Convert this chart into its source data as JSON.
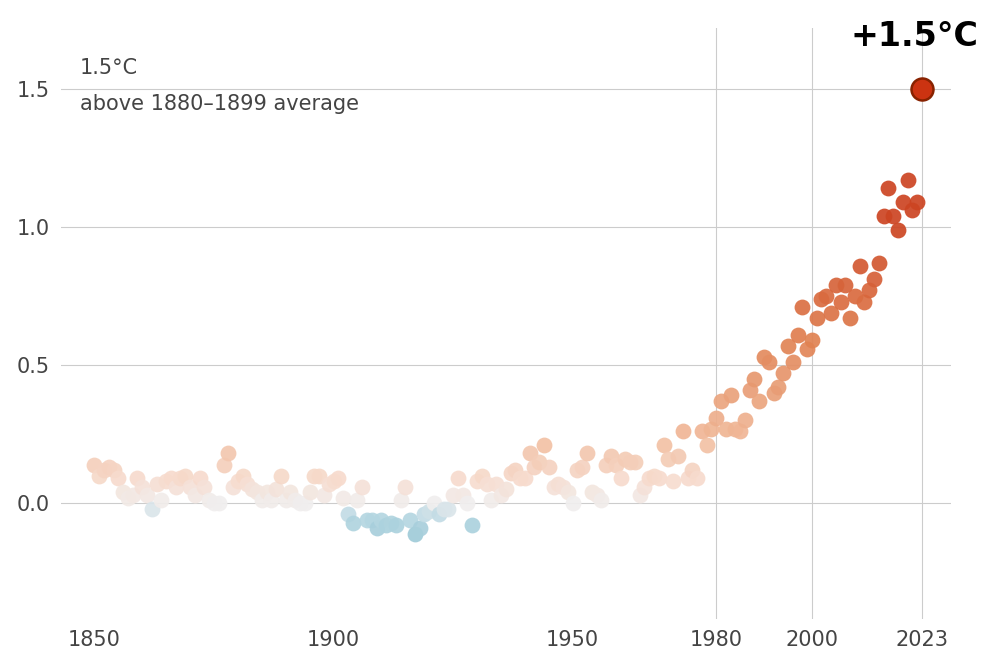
{
  "title_annotation": "+1.5°C",
  "ylabel_line1": "1.5°C",
  "ylabel_line2": "above 1880–1899 average",
  "background_color": "#ffffff",
  "xlim": [
    1843,
    2029
  ],
  "ylim": [
    -0.42,
    1.72
  ],
  "yticks": [
    0.0,
    0.5,
    1.0,
    1.5
  ],
  "xticks": [
    1850,
    1900,
    1950,
    1980,
    2000,
    2023
  ],
  "vgrid_years": [
    1980,
    2000,
    2023
  ],
  "data": [
    [
      1850,
      0.14
    ],
    [
      1851,
      0.1
    ],
    [
      1852,
      0.12
    ],
    [
      1853,
      0.13
    ],
    [
      1854,
      0.12
    ],
    [
      1855,
      0.09
    ],
    [
      1856,
      0.04
    ],
    [
      1857,
      0.02
    ],
    [
      1858,
      0.03
    ],
    [
      1859,
      0.09
    ],
    [
      1860,
      0.06
    ],
    [
      1861,
      0.03
    ],
    [
      1862,
      -0.02
    ],
    [
      1863,
      0.07
    ],
    [
      1864,
      0.01
    ],
    [
      1865,
      0.08
    ],
    [
      1866,
      0.09
    ],
    [
      1867,
      0.06
    ],
    [
      1868,
      0.09
    ],
    [
      1869,
      0.1
    ],
    [
      1870,
      0.06
    ],
    [
      1871,
      0.03
    ],
    [
      1872,
      0.09
    ],
    [
      1873,
      0.06
    ],
    [
      1874,
      0.01
    ],
    [
      1875,
      0.0
    ],
    [
      1876,
      0.0
    ],
    [
      1877,
      0.14
    ],
    [
      1878,
      0.18
    ],
    [
      1879,
      0.06
    ],
    [
      1880,
      0.08
    ],
    [
      1881,
      0.1
    ],
    [
      1882,
      0.07
    ],
    [
      1883,
      0.05
    ],
    [
      1884,
      0.04
    ],
    [
      1885,
      0.01
    ],
    [
      1886,
      0.04
    ],
    [
      1887,
      0.01
    ],
    [
      1888,
      0.05
    ],
    [
      1889,
      0.1
    ],
    [
      1890,
      0.01
    ],
    [
      1891,
      0.04
    ],
    [
      1892,
      0.01
    ],
    [
      1893,
      0.0
    ],
    [
      1894,
      0.0
    ],
    [
      1895,
      0.04
    ],
    [
      1896,
      0.1
    ],
    [
      1897,
      0.1
    ],
    [
      1898,
      0.03
    ],
    [
      1899,
      0.07
    ],
    [
      1900,
      0.08
    ],
    [
      1901,
      0.09
    ],
    [
      1902,
      0.02
    ],
    [
      1903,
      -0.04
    ],
    [
      1904,
      -0.07
    ],
    [
      1905,
      0.01
    ],
    [
      1906,
      0.06
    ],
    [
      1907,
      -0.06
    ],
    [
      1908,
      -0.06
    ],
    [
      1909,
      -0.09
    ],
    [
      1910,
      -0.06
    ],
    [
      1911,
      -0.08
    ],
    [
      1912,
      -0.07
    ],
    [
      1913,
      -0.08
    ],
    [
      1914,
      0.01
    ],
    [
      1915,
      0.06
    ],
    [
      1916,
      -0.06
    ],
    [
      1917,
      -0.11
    ],
    [
      1918,
      -0.09
    ],
    [
      1919,
      -0.04
    ],
    [
      1920,
      -0.03
    ],
    [
      1921,
      0.0
    ],
    [
      1922,
      -0.04
    ],
    [
      1923,
      -0.02
    ],
    [
      1924,
      -0.02
    ],
    [
      1925,
      0.03
    ],
    [
      1926,
      0.09
    ],
    [
      1927,
      0.03
    ],
    [
      1928,
      0.0
    ],
    [
      1929,
      -0.08
    ],
    [
      1930,
      0.08
    ],
    [
      1931,
      0.1
    ],
    [
      1932,
      0.07
    ],
    [
      1933,
      0.01
    ],
    [
      1934,
      0.07
    ],
    [
      1935,
      0.03
    ],
    [
      1936,
      0.05
    ],
    [
      1937,
      0.11
    ],
    [
      1938,
      0.12
    ],
    [
      1939,
      0.09
    ],
    [
      1940,
      0.09
    ],
    [
      1941,
      0.18
    ],
    [
      1942,
      0.13
    ],
    [
      1943,
      0.15
    ],
    [
      1944,
      0.21
    ],
    [
      1945,
      0.13
    ],
    [
      1946,
      0.06
    ],
    [
      1947,
      0.07
    ],
    [
      1948,
      0.06
    ],
    [
      1949,
      0.04
    ],
    [
      1950,
      0.0
    ],
    [
      1951,
      0.12
    ],
    [
      1952,
      0.13
    ],
    [
      1953,
      0.18
    ],
    [
      1954,
      0.04
    ],
    [
      1955,
      0.03
    ],
    [
      1956,
      0.01
    ],
    [
      1957,
      0.14
    ],
    [
      1958,
      0.17
    ],
    [
      1959,
      0.14
    ],
    [
      1960,
      0.09
    ],
    [
      1961,
      0.16
    ],
    [
      1962,
      0.15
    ],
    [
      1963,
      0.15
    ],
    [
      1964,
      0.03
    ],
    [
      1965,
      0.06
    ],
    [
      1966,
      0.09
    ],
    [
      1967,
      0.1
    ],
    [
      1968,
      0.09
    ],
    [
      1969,
      0.21
    ],
    [
      1970,
      0.16
    ],
    [
      1971,
      0.08
    ],
    [
      1972,
      0.17
    ],
    [
      1973,
      0.26
    ],
    [
      1974,
      0.09
    ],
    [
      1975,
      0.12
    ],
    [
      1976,
      0.09
    ],
    [
      1977,
      0.26
    ],
    [
      1978,
      0.21
    ],
    [
      1979,
      0.27
    ],
    [
      1980,
      0.31
    ],
    [
      1981,
      0.37
    ],
    [
      1982,
      0.27
    ],
    [
      1983,
      0.39
    ],
    [
      1984,
      0.27
    ],
    [
      1985,
      0.26
    ],
    [
      1986,
      0.3
    ],
    [
      1987,
      0.41
    ],
    [
      1988,
      0.45
    ],
    [
      1989,
      0.37
    ],
    [
      1990,
      0.53
    ],
    [
      1991,
      0.51
    ],
    [
      1992,
      0.4
    ],
    [
      1993,
      0.42
    ],
    [
      1994,
      0.47
    ],
    [
      1995,
      0.57
    ],
    [
      1996,
      0.51
    ],
    [
      1997,
      0.61
    ],
    [
      1998,
      0.71
    ],
    [
      1999,
      0.56
    ],
    [
      2000,
      0.59
    ],
    [
      2001,
      0.67
    ],
    [
      2002,
      0.74
    ],
    [
      2003,
      0.75
    ],
    [
      2004,
      0.69
    ],
    [
      2005,
      0.79
    ],
    [
      2006,
      0.73
    ],
    [
      2007,
      0.79
    ],
    [
      2008,
      0.67
    ],
    [
      2009,
      0.75
    ],
    [
      2010,
      0.86
    ],
    [
      2011,
      0.73
    ],
    [
      2012,
      0.77
    ],
    [
      2013,
      0.81
    ],
    [
      2014,
      0.87
    ],
    [
      2015,
      1.04
    ],
    [
      2016,
      1.14
    ],
    [
      2017,
      1.04
    ],
    [
      2018,
      0.99
    ],
    [
      2019,
      1.09
    ],
    [
      2020,
      1.17
    ],
    [
      2021,
      1.06
    ],
    [
      2022,
      1.09
    ],
    [
      2023,
      1.5
    ]
  ],
  "highlight_year": 2023,
  "highlight_value": 1.5,
  "cold_strong_color": "#7bb8c8",
  "cold_light_color": "#b8d8e3",
  "neutral_color": "#f0eeee",
  "warm_vlight_color": "#f7ddd0",
  "warm_light_color": "#f0b898",
  "warm_mid_color": "#e08050",
  "warm_hot_color": "#cc4422",
  "highlight_color": "#cc3311",
  "highlight_edge_color": "#882200",
  "dot_size": 130,
  "highlight_dot_size": 250,
  "grid_color": "#cccccc",
  "text_color": "#444444",
  "annotation_fontsize": 24,
  "axis_fontsize": 15,
  "label_fontsize": 15
}
